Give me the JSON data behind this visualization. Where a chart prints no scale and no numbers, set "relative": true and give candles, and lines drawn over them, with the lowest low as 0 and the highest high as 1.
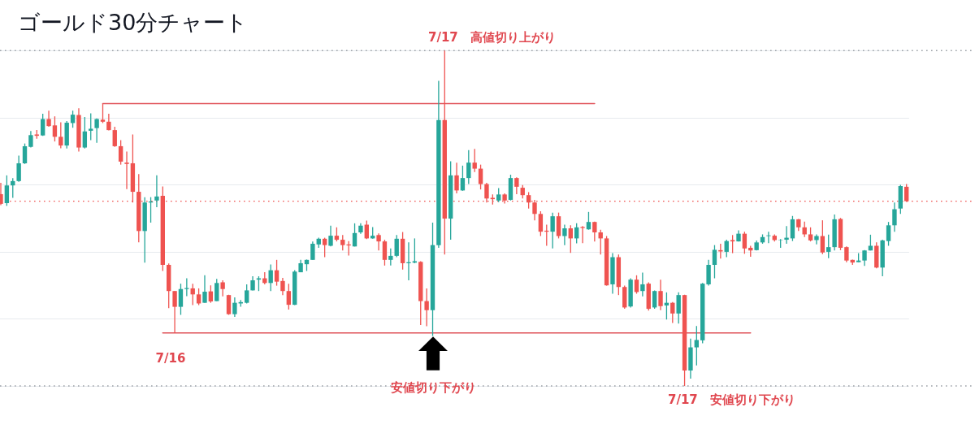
{
  "chart_data": {
    "type": "candlestick",
    "title": "ゴールド30分チャート",
    "relative": true,
    "grid": "y",
    "categories": [
      null,
      null,
      null,
      null,
      null,
      null,
      null,
      null,
      null,
      null,
      null,
      null,
      null,
      null,
      null,
      null,
      null,
      null,
      null,
      null,
      null,
      null,
      null,
      null,
      null,
      null,
      null,
      null,
      null,
      null,
      null,
      null,
      null,
      null,
      null,
      null,
      null,
      null,
      null,
      null,
      null,
      null,
      null,
      null,
      null,
      null,
      null,
      null,
      null,
      null,
      null,
      null,
      null,
      null,
      null,
      null,
      null,
      null,
      null,
      null,
      null,
      null,
      null,
      null,
      null,
      null,
      null,
      null,
      null,
      null,
      null,
      null,
      null,
      null,
      null,
      null,
      null,
      null,
      null,
      null,
      null,
      null,
      null,
      null,
      null,
      null,
      null,
      null,
      null,
      null,
      null,
      null,
      null,
      null,
      null,
      null,
      null,
      null,
      null,
      null,
      null,
      null,
      null,
      null,
      null,
      null,
      null,
      null,
      null,
      null,
      null,
      null,
      null,
      null,
      null,
      null,
      null,
      null,
      null,
      null,
      null,
      null,
      null,
      null,
      null,
      null,
      null,
      null,
      null,
      null,
      null,
      null,
      null,
      null,
      null,
      null,
      null,
      null,
      null,
      null,
      null,
      null,
      null,
      null,
      null,
      null,
      null,
      null,
      null,
      null,
      null,
      null
    ],
    "ohlc": [
      [
        0.572,
        0.606,
        0.539,
        0.543
      ],
      [
        0.545,
        0.628,
        0.537,
        0.598
      ],
      [
        0.598,
        0.62,
        0.561,
        0.611
      ],
      [
        0.611,
        0.687,
        0.609,
        0.664
      ],
      [
        0.664,
        0.723,
        0.662,
        0.715
      ],
      [
        0.713,
        0.76,
        0.711,
        0.748
      ],
      [
        0.75,
        0.763,
        0.737,
        0.746
      ],
      [
        0.747,
        0.812,
        0.746,
        0.796
      ],
      [
        0.796,
        0.821,
        0.773,
        0.775
      ],
      [
        0.777,
        0.804,
        0.729,
        0.743
      ],
      [
        0.743,
        0.786,
        0.709,
        0.717
      ],
      [
        0.717,
        0.79,
        0.708,
        0.785
      ],
      [
        0.784,
        0.821,
        0.77,
        0.809
      ],
      [
        0.808,
        0.828,
        0.699,
        0.711
      ],
      [
        0.711,
        0.802,
        0.708,
        0.759
      ],
      [
        0.761,
        0.813,
        0.733,
        0.767
      ],
      [
        0.769,
        0.798,
        0.725,
        0.796
      ],
      [
        0.794,
        0.842,
        0.784,
        0.788
      ],
      [
        0.788,
        0.812,
        0.762,
        0.763
      ],
      [
        0.763,
        0.773,
        0.713,
        0.715
      ],
      [
        0.715,
        0.733,
        0.66,
        0.669
      ],
      [
        0.666,
        0.699,
        0.587,
        0.662
      ],
      [
        0.664,
        0.75,
        0.547,
        0.579
      ],
      [
        0.579,
        0.632,
        0.428,
        0.462
      ],
      [
        0.462,
        0.563,
        0.368,
        0.547
      ],
      [
        0.547,
        0.563,
        0.487,
        0.55
      ],
      [
        0.553,
        0.628,
        0.533,
        0.565
      ],
      [
        0.567,
        0.595,
        0.343,
        0.361
      ],
      [
        0.361,
        0.365,
        0.232,
        0.283
      ],
      [
        0.283,
        0.283,
        0.158,
        0.236
      ],
      [
        0.236,
        0.305,
        0.212,
        0.289
      ],
      [
        0.289,
        0.321,
        0.268,
        0.292
      ],
      [
        0.291,
        0.305,
        0.241,
        0.273
      ],
      [
        0.273,
        0.291,
        0.241,
        0.246
      ],
      [
        0.248,
        0.33,
        0.248,
        0.281
      ],
      [
        0.282,
        0.3,
        0.248,
        0.252
      ],
      [
        0.253,
        0.319,
        0.253,
        0.307
      ],
      [
        0.309,
        0.315,
        0.267,
        0.289
      ],
      [
        0.271,
        0.272,
        0.212,
        0.214
      ],
      [
        0.214,
        0.264,
        0.206,
        0.248
      ],
      [
        0.246,
        0.256,
        0.236,
        0.25
      ],
      [
        0.248,
        0.303,
        0.246,
        0.285
      ],
      [
        0.285,
        0.327,
        0.285,
        0.315
      ],
      [
        0.317,
        0.327,
        0.283,
        0.321
      ],
      [
        0.321,
        0.339,
        0.303,
        0.307
      ],
      [
        0.307,
        0.362,
        0.283,
        0.345
      ],
      [
        0.345,
        0.376,
        0.299,
        0.311
      ],
      [
        0.313,
        0.322,
        0.271,
        0.283
      ],
      [
        0.283,
        0.305,
        0.228,
        0.242
      ],
      [
        0.242,
        0.345,
        0.241,
        0.341
      ],
      [
        0.339,
        0.376,
        0.339,
        0.366
      ],
      [
        0.363,
        0.377,
        0.343,
        0.376
      ],
      [
        0.376,
        0.431,
        0.376,
        0.424
      ],
      [
        0.422,
        0.442,
        0.412,
        0.439
      ],
      [
        0.439,
        0.442,
        0.384,
        0.42
      ],
      [
        0.418,
        0.478,
        0.416,
        0.448
      ],
      [
        0.448,
        0.473,
        0.431,
        0.436
      ],
      [
        0.436,
        0.45,
        0.404,
        0.42
      ],
      [
        0.422,
        0.432,
        0.389,
        0.419
      ],
      [
        0.416,
        0.485,
        0.416,
        0.456
      ],
      [
        0.458,
        0.485,
        0.454,
        0.478
      ],
      [
        0.481,
        0.493,
        0.438,
        0.44
      ],
      [
        0.44,
        0.474,
        0.439,
        0.448
      ],
      [
        0.45,
        0.455,
        0.404,
        0.431
      ],
      [
        0.431,
        0.436,
        0.359,
        0.376
      ],
      [
        0.376,
        0.41,
        0.359,
        0.388
      ],
      [
        0.388,
        0.45,
        0.384,
        0.439
      ],
      [
        0.439,
        0.459,
        0.347,
        0.366
      ],
      [
        0.366,
        0.428,
        0.315,
        0.369
      ],
      [
        0.368,
        0.44,
        0.366,
        0.372
      ],
      [
        0.37,
        0.372,
        0.182,
        0.253
      ],
      [
        0.253,
        0.291,
        0.178,
        0.226
      ],
      [
        0.226,
        0.487,
        0.149,
        0.42
      ],
      [
        0.42,
        0.91,
        0.412,
        0.793
      ],
      [
        0.793,
        1.0,
        0.392,
        0.499
      ],
      [
        0.499,
        0.67,
        0.436,
        0.628
      ],
      [
        0.628,
        0.666,
        0.574,
        0.583
      ],
      [
        0.583,
        0.657,
        0.582,
        0.62
      ],
      [
        0.62,
        0.703,
        0.602,
        0.666
      ],
      [
        0.666,
        0.707,
        0.638,
        0.648
      ],
      [
        0.648,
        0.66,
        0.586,
        0.602
      ],
      [
        0.602,
        0.606,
        0.547,
        0.559
      ],
      [
        0.561,
        0.571,
        0.541,
        0.557
      ],
      [
        0.553,
        0.59,
        0.548,
        0.571
      ],
      [
        0.571,
        0.574,
        0.544,
        0.553
      ],
      [
        0.555,
        0.63,
        0.553,
        0.62
      ],
      [
        0.62,
        0.622,
        0.572,
        0.594
      ],
      [
        0.591,
        0.599,
        0.559,
        0.569
      ],
      [
        0.569,
        0.578,
        0.529,
        0.547
      ],
      [
        0.547,
        0.555,
        0.494,
        0.513
      ],
      [
        0.513,
        0.521,
        0.447,
        0.46
      ],
      [
        0.463,
        0.481,
        0.418,
        0.46
      ],
      [
        0.46,
        0.517,
        0.41,
        0.506
      ],
      [
        0.506,
        0.517,
        0.44,
        0.447
      ],
      [
        0.447,
        0.481,
        0.42,
        0.47
      ],
      [
        0.47,
        0.479,
        0.397,
        0.44
      ],
      [
        0.44,
        0.485,
        0.425,
        0.473
      ],
      [
        0.474,
        0.477,
        0.426,
        0.471
      ],
      [
        0.467,
        0.519,
        0.466,
        0.489
      ],
      [
        0.489,
        0.49,
        0.431,
        0.458
      ],
      [
        0.458,
        0.466,
        0.392,
        0.44
      ],
      [
        0.44,
        0.447,
        0.299,
        0.3
      ],
      [
        0.303,
        0.396,
        0.275,
        0.384
      ],
      [
        0.384,
        0.392,
        0.271,
        0.295
      ],
      [
        0.295,
        0.299,
        0.23,
        0.234
      ],
      [
        0.237,
        0.321,
        0.234,
        0.317
      ],
      [
        0.317,
        0.33,
        0.275,
        0.28
      ],
      [
        0.283,
        0.338,
        0.267,
        0.303
      ],
      [
        0.305,
        0.309,
        0.225,
        0.23
      ],
      [
        0.234,
        0.285,
        0.23,
        0.283
      ],
      [
        0.283,
        0.317,
        0.226,
        0.238
      ],
      [
        0.24,
        0.279,
        0.198,
        0.248
      ],
      [
        0.248,
        0.25,
        0.188,
        0.216
      ],
      [
        0.216,
        0.279,
        0.186,
        0.271
      ],
      [
        0.271,
        0.272,
        0.0,
        0.046
      ],
      [
        0.046,
        0.141,
        0.022,
        0.115
      ],
      [
        0.115,
        0.179,
        0.061,
        0.137
      ],
      [
        0.136,
        0.307,
        0.127,
        0.305
      ],
      [
        0.303,
        0.376,
        0.299,
        0.361
      ],
      [
        0.361,
        0.42,
        0.321,
        0.406
      ],
      [
        0.405,
        0.424,
        0.38,
        0.401
      ],
      [
        0.4,
        0.436,
        0.384,
        0.432
      ],
      [
        0.435,
        0.45,
        0.396,
        0.431
      ],
      [
        0.431,
        0.464,
        0.431,
        0.454
      ],
      [
        0.454,
        0.46,
        0.394,
        0.41
      ],
      [
        0.412,
        0.418,
        0.385,
        0.404
      ],
      [
        0.405,
        0.434,
        0.404,
        0.428
      ],
      [
        0.428,
        0.452,
        0.424,
        0.444
      ],
      [
        0.447,
        0.46,
        0.426,
        0.449
      ],
      [
        0.448,
        0.452,
        0.431,
        0.435
      ],
      [
        0.435,
        0.438,
        0.412,
        0.436
      ],
      [
        0.436,
        0.477,
        0.424,
        0.442
      ],
      [
        0.44,
        0.507,
        0.432,
        0.497
      ],
      [
        0.497,
        0.498,
        0.462,
        0.473
      ],
      [
        0.473,
        0.49,
        0.444,
        0.452
      ],
      [
        0.452,
        0.473,
        0.431,
        0.434
      ],
      [
        0.435,
        0.452,
        0.422,
        0.447
      ],
      [
        0.447,
        0.494,
        0.393,
        0.398
      ],
      [
        0.4,
        0.451,
        0.381,
        0.414
      ],
      [
        0.414,
        0.511,
        0.404,
        0.497
      ],
      [
        0.498,
        0.501,
        0.405,
        0.412
      ],
      [
        0.414,
        0.416,
        0.369,
        0.374
      ],
      [
        0.376,
        0.377,
        0.361,
        0.368
      ],
      [
        0.369,
        0.396,
        0.369,
        0.374
      ],
      [
        0.374,
        0.405,
        0.358,
        0.404
      ],
      [
        0.404,
        0.451,
        0.404,
        0.418
      ],
      [
        0.418,
        0.428,
        0.351,
        0.353
      ],
      [
        0.353,
        0.436,
        0.327,
        0.434
      ],
      [
        0.432,
        0.489,
        0.418,
        0.479
      ],
      [
        0.479,
        0.547,
        0.46,
        0.527
      ],
      [
        0.529,
        0.6,
        0.513,
        0.596
      ],
      [
        0.594,
        0.602,
        0.549,
        0.551
      ]
    ],
    "colors": [
      "#ef5350",
      "#26a69a",
      "#26a69a",
      "#26a69a",
      "#26a69a",
      "#26a69a",
      "#ef5350",
      "#26a69a",
      "#ef5350",
      "#ef5350",
      "#ef5350",
      "#26a69a",
      "#26a69a",
      "#ef5350",
      "#26a69a",
      "#26a69a",
      "#26a69a",
      "#ef5350",
      "#ef5350",
      "#ef5350",
      "#ef5350",
      "#ef5350",
      "#ef5350",
      "#ef5350",
      "#26a69a",
      "#26a69a",
      "#26a69a",
      "#ef5350",
      "#ef5350",
      "#ef5350",
      "#26a69a",
      "#26a69a",
      "#ef5350",
      "#ef5350",
      "#26a69a",
      "#ef5350",
      "#26a69a",
      "#ef5350",
      "#ef5350",
      "#26a69a",
      "#26a69a",
      "#26a69a",
      "#26a69a",
      "#26a69a",
      "#ef5350",
      "#26a69a",
      "#ef5350",
      "#ef5350",
      "#ef5350",
      "#26a69a",
      "#26a69a",
      "#26a69a",
      "#26a69a",
      "#26a69a",
      "#ef5350",
      "#26a69a",
      "#ef5350",
      "#ef5350",
      "#ef5350",
      "#26a69a",
      "#26a69a",
      "#ef5350",
      "#26a69a",
      "#ef5350",
      "#ef5350",
      "#26a69a",
      "#26a69a",
      "#ef5350",
      "#26a69a",
      "#26a69a",
      "#ef5350",
      "#ef5350",
      "#26a69a",
      "#26a69a",
      "#ef5350",
      "#26a69a",
      "#ef5350",
      "#26a69a",
      "#26a69a",
      "#ef5350",
      "#ef5350",
      "#ef5350",
      "#ef5350",
      "#26a69a",
      "#ef5350",
      "#26a69a",
      "#ef5350",
      "#ef5350",
      "#ef5350",
      "#ef5350",
      "#ef5350",
      "#ef5350",
      "#26a69a",
      "#ef5350",
      "#26a69a",
      "#ef5350",
      "#26a69a",
      "#ef5350",
      "#26a69a",
      "#ef5350",
      "#ef5350",
      "#ef5350",
      "#26a69a",
      "#ef5350",
      "#ef5350",
      "#26a69a",
      "#ef5350",
      "#26a69a",
      "#ef5350",
      "#26a69a",
      "#ef5350",
      "#26a69a",
      "#ef5350",
      "#26a69a",
      "#ef5350",
      "#26a69a",
      "#26a69a",
      "#26a69a",
      "#26a69a",
      "#26a69a",
      "#ef5350",
      "#26a69a",
      "#ef5350",
      "#26a69a",
      "#ef5350",
      "#ef5350",
      "#26a69a",
      "#26a69a",
      "#26a69a",
      "#ef5350",
      "#26a69a",
      "#26a69a",
      "#26a69a",
      "#ef5350",
      "#ef5350",
      "#ef5350",
      "#26a69a",
      "#ef5350",
      "#26a69a",
      "#26a69a",
      "#ef5350",
      "#ef5350",
      "#ef5350",
      "#26a69a",
      "#26a69a",
      "#26a69a",
      "#ef5350",
      "#26a69a",
      "#26a69a",
      "#26a69a",
      "#26a69a",
      "#ef5350"
    ],
    "series": [
      {
        "type": "line",
        "color": "#e05259",
        "values": [
          null,
          null,
          null,
          null,
          null,
          null,
          null,
          null,
          null,
          null,
          null,
          null,
          null,
          null,
          null,
          null,
          null,
          0.842,
          0.842,
          0.842,
          0.842,
          0.842,
          0.842,
          0.842,
          0.842,
          0.842,
          0.842,
          0.842,
          0.842,
          0.842,
          0.842,
          0.842,
          0.842,
          0.842,
          0.842,
          0.842,
          0.842,
          0.842,
          0.842,
          0.842,
          0.842,
          0.842,
          0.842,
          0.842,
          0.842,
          0.842,
          0.842,
          0.842,
          0.842,
          0.842,
          0.842,
          0.842,
          0.842,
          0.842,
          0.842,
          0.842,
          0.842,
          0.842,
          0.842,
          0.842,
          0.842,
          0.842,
          0.842,
          0.842,
          0.842,
          0.842,
          0.842,
          0.842,
          0.842,
          0.842,
          0.842,
          0.842,
          0.842,
          0.842,
          0.842,
          0.842,
          0.842,
          0.842,
          0.842,
          0.842,
          0.842,
          0.842,
          0.842,
          0.842,
          0.842,
          0.842,
          0.842,
          0.842,
          0.842,
          0.842,
          0.842,
          0.842,
          0.842,
          0.842,
          0.842,
          0.842,
          0.842,
          0.842,
          0.842,
          0.842,
          null,
          null,
          null,
          null,
          null,
          null,
          null,
          null,
          null,
          null,
          null,
          null,
          null,
          null,
          null,
          null,
          null,
          null,
          null,
          null,
          null,
          null,
          null,
          null,
          null,
          null,
          null,
          null,
          null,
          null,
          null,
          null,
          null,
          null,
          null,
          null,
          null,
          null,
          null,
          null,
          null,
          null,
          null,
          null,
          null,
          null,
          null,
          null,
          null,
          null,
          null,
          null
        ]
      },
      {
        "type": "line",
        "color": "#e05259",
        "values": [
          null,
          null,
          null,
          null,
          null,
          null,
          null,
          null,
          null,
          null,
          null,
          null,
          null,
          null,
          null,
          null,
          null,
          null,
          null,
          null,
          null,
          null,
          null,
          null,
          null,
          null,
          null,
          0.158,
          0.158,
          0.158,
          0.158,
          0.158,
          0.158,
          0.158,
          0.158,
          0.158,
          0.158,
          0.158,
          0.158,
          0.158,
          0.158,
          0.158,
          0.158,
          0.158,
          0.158,
          0.158,
          0.158,
          0.158,
          0.158,
          0.158,
          0.158,
          0.158,
          0.158,
          0.158,
          0.158,
          0.158,
          0.158,
          0.158,
          0.158,
          0.158,
          0.158,
          0.158,
          0.158,
          0.158,
          0.158,
          0.158,
          0.158,
          0.158,
          0.158,
          0.158,
          0.158,
          0.158,
          0.158,
          0.158,
          0.158,
          0.158,
          0.158,
          0.158,
          0.158,
          0.158,
          0.158,
          0.158,
          0.158,
          0.158,
          0.158,
          0.158,
          0.158,
          0.158,
          0.158,
          0.158,
          0.158,
          0.158,
          0.158,
          0.158,
          0.158,
          0.158,
          0.158,
          0.158,
          0.158,
          0.158,
          0.158,
          0.158,
          0.158,
          0.158,
          0.158,
          0.158,
          0.158,
          0.158,
          0.158,
          0.158,
          0.158,
          0.158,
          0.158,
          0.158,
          0.158,
          0.158,
          0.158,
          0.158,
          0.158,
          0.158,
          0.158,
          0.158,
          0.158,
          0.158,
          0.158,
          0.158,
          null,
          null,
          null,
          null,
          null,
          null,
          null,
          null,
          null,
          null,
          null,
          null,
          null,
          null,
          null,
          null,
          null,
          null,
          null,
          null,
          null,
          null,
          null,
          null,
          null,
          null
        ]
      }
    ],
    "ref_lines": [
      {
        "axis": "y",
        "value": 1.0,
        "color": "#9aa0a6",
        "line_style": "dotted"
      },
      {
        "axis": "y",
        "value": 0.0,
        "color": "#9aa0a6",
        "line_style": "dotted"
      },
      {
        "axis": "y",
        "value": 0.551,
        "color": "#ef5350",
        "line_style": "dotted"
      }
    ],
    "annotations": [
      "7/17　高値切り上がり",
      "7/16",
      "安値切り下がり",
      "7/17　安値切り下がり"
    ]
  }
}
